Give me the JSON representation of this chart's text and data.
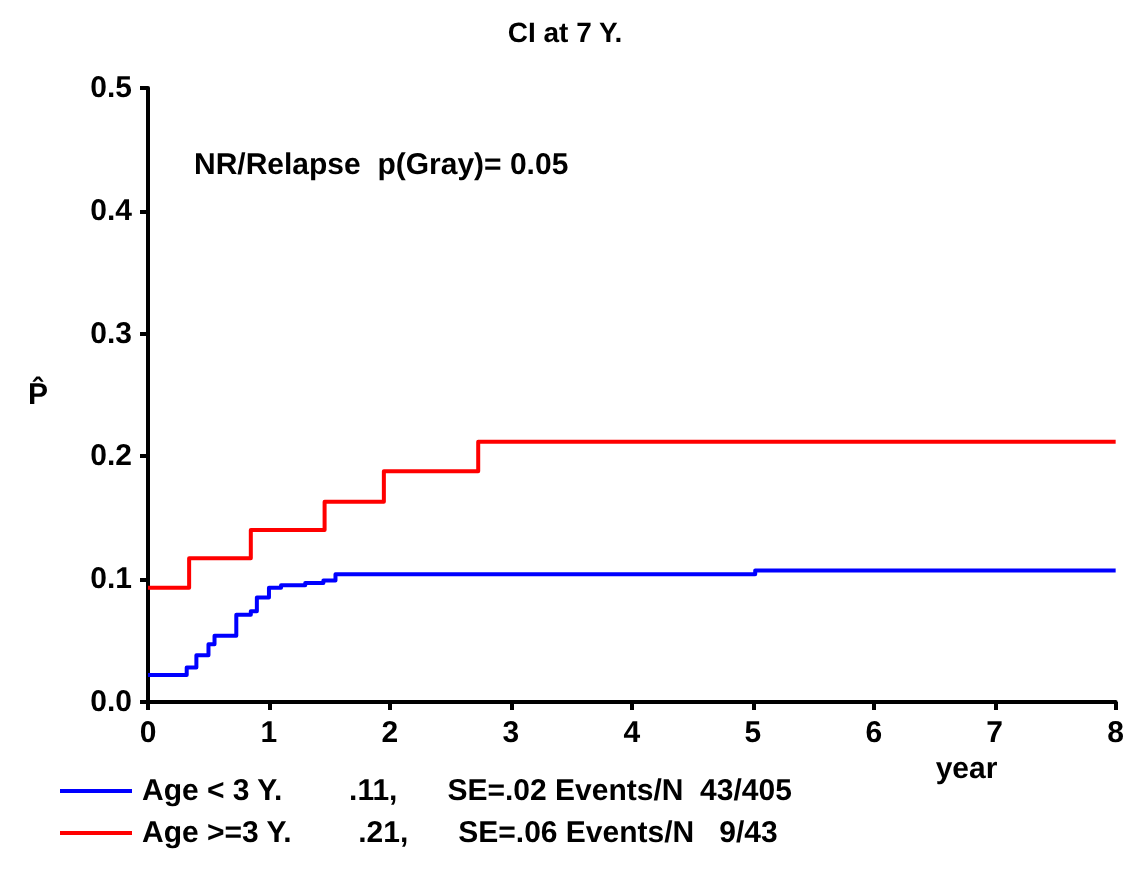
{
  "chart_data": {
    "type": "step",
    "title": "CI at 7 Y.",
    "xlabel": "year",
    "ylabel": "P̂",
    "annotations": [
      "NR/Relapse  p(Gray)= 0.05"
    ],
    "xlim": [
      0,
      8
    ],
    "xticks": [
      0,
      1,
      2,
      3,
      4,
      5,
      6,
      7,
      8
    ],
    "ylim": [
      0,
      0.5
    ],
    "yticks": [
      {
        "value": 0,
        "label": "0.0"
      },
      {
        "value": 0.1,
        "label": "0.1"
      },
      {
        "value": 0.2,
        "label": "0.2"
      },
      {
        "value": 0.3,
        "label": "0.3"
      },
      {
        "value": 0.4,
        "label": "0.4"
      },
      {
        "value": 0.5,
        "label": "0.5"
      }
    ],
    "grid": false,
    "legend": "bottom left",
    "marker": "none",
    "line_style": "solid",
    "series": [
      {
        "name": "Age < 3 Y.        .11,      SE=.02 Events/N  43/405",
        "color": "#0000ff",
        "x": [
          0,
          0.3,
          0.32,
          0.4,
          0.5,
          0.55,
          0.7,
          0.73,
          0.85,
          0.9,
          1.0,
          1.1,
          1.3,
          1.45,
          1.55,
          5.0,
          5.02,
          8
        ],
        "values": [
          0.022,
          0.022,
          0.028,
          0.038,
          0.047,
          0.054,
          0.054,
          0.071,
          0.074,
          0.085,
          0.093,
          0.095,
          0.097,
          0.099,
          0.104,
          0.104,
          0.107,
          0.107
        ]
      },
      {
        "name": "Age >=3 Y.        .21,      SE=.06 Events/N   9/43",
        "color": "#ff0000",
        "x": [
          0,
          0.34,
          0.85,
          1.46,
          1.95,
          2.73,
          8
        ],
        "values": [
          0.093,
          0.117,
          0.14,
          0.163,
          0.188,
          0.212,
          0.212
        ]
      }
    ]
  }
}
